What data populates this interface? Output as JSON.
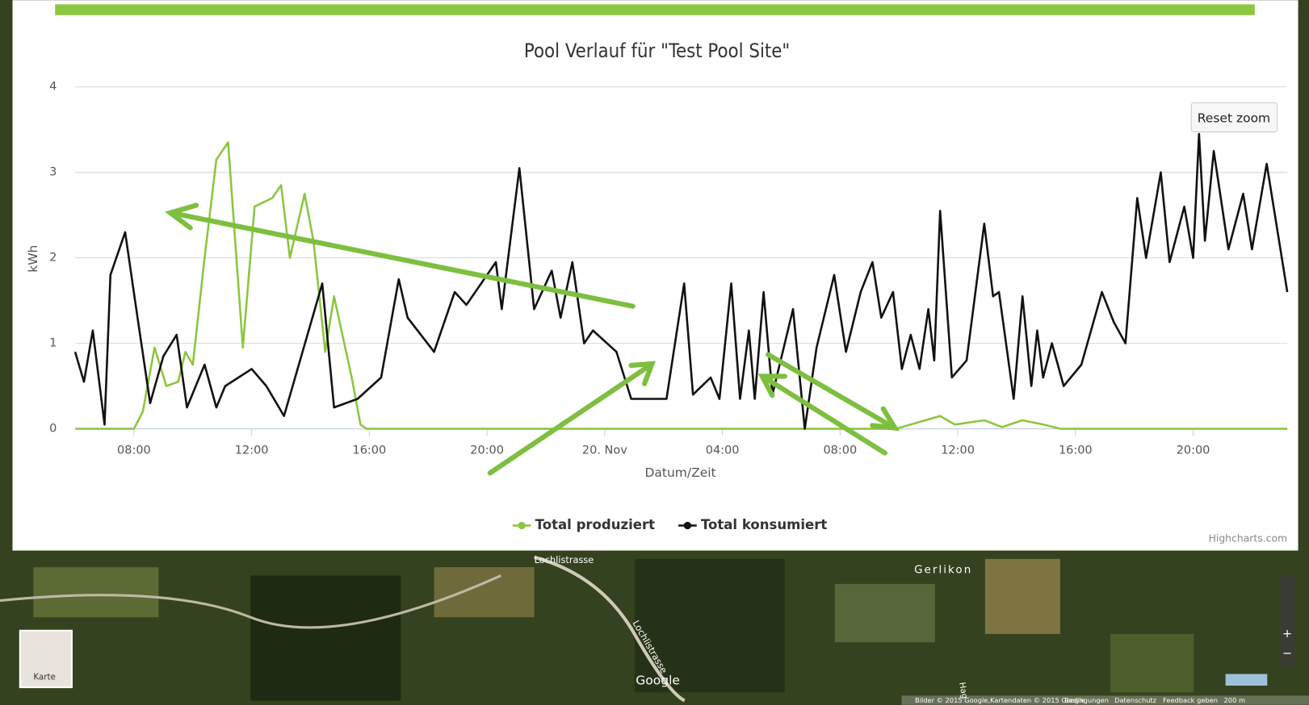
{
  "chart_data": {
    "type": "line",
    "title": "Pool Verlauf für \"Test Pool Site\"",
    "x_label": "Datum/Zeit",
    "y_label": "kWh",
    "xlim": [
      6,
      47.2
    ],
    "ylim": [
      0,
      4
    ],
    "xticks": [
      {
        "value": 8,
        "label": "08:00"
      },
      {
        "value": 12,
        "label": "12:00"
      },
      {
        "value": 16,
        "label": "16:00"
      },
      {
        "value": 20,
        "label": "20:00"
      },
      {
        "value": 24,
        "label": "20. Nov"
      },
      {
        "value": 28,
        "label": "04:00"
      },
      {
        "value": 32,
        "label": "08:00"
      },
      {
        "value": 36,
        "label": "12:00"
      },
      {
        "value": 40,
        "label": "16:00"
      },
      {
        "value": 44,
        "label": "20:00"
      }
    ],
    "yticks": [
      0,
      1,
      2,
      3,
      4
    ],
    "grid": true,
    "series": [
      {
        "name": "Total produziert",
        "color": "#8dc63f",
        "x": [
          6,
          8,
          8.3,
          8.7,
          9.1,
          9.5,
          9.75,
          10,
          10.4,
          10.8,
          11.2,
          11.7,
          12.1,
          12.7,
          13,
          13.3,
          13.8,
          14.1,
          14.5,
          14.8,
          15.4,
          15.7,
          15.9,
          33.9,
          34.9,
          35.4,
          35.9,
          36.9,
          37.5,
          38.2,
          38.9,
          39.5,
          47.2
        ],
        "values": [
          0,
          0,
          0.2,
          0.95,
          0.5,
          0.55,
          0.9,
          0.75,
          2.0,
          3.15,
          3.35,
          0.95,
          2.6,
          2.7,
          2.85,
          2.0,
          2.75,
          2.2,
          0.9,
          1.55,
          0.6,
          0.05,
          0,
          0,
          0.1,
          0.15,
          0.05,
          0.1,
          0.02,
          0.1,
          0.05,
          0,
          0
        ]
      },
      {
        "name": "Total konsumiert",
        "color": "#111111",
        "x": [
          6,
          6.3,
          6.6,
          7.0,
          7.2,
          7.7,
          8.1,
          8.55,
          9.0,
          9.45,
          9.8,
          10.4,
          10.8,
          11.1,
          12,
          12.5,
          13.1,
          14.4,
          14.8,
          15.6,
          16.4,
          17,
          17.3,
          18.2,
          18.9,
          19.3,
          20.3,
          20.5,
          21.1,
          21.6,
          22.2,
          22.5,
          22.9,
          23.3,
          23.6,
          24.4,
          24.9,
          25.6,
          26.1,
          26.7,
          27,
          27.6,
          27.9,
          28.3,
          28.6,
          28.9,
          29.1,
          29.4,
          29.7,
          30.4,
          30.8,
          31.2,
          31.8,
          32.2,
          32.7,
          33.1,
          33.4,
          33.8,
          34.1,
          34.4,
          34.7,
          35,
          35.2,
          35.4,
          35.8,
          36.3,
          36.9,
          37.2,
          37.4,
          37.9,
          38.2,
          38.5,
          38.7,
          38.9,
          39.2,
          39.6,
          40.2,
          40.9,
          41.3,
          41.7,
          42.1,
          42.4,
          42.9,
          43.2,
          43.7,
          44,
          44.2,
          44.4,
          44.7,
          45.2,
          45.7,
          46,
          46.5,
          47.2
        ],
        "values": [
          0.9,
          0.55,
          1.15,
          0.05,
          1.8,
          2.3,
          1.35,
          0.3,
          0.85,
          1.1,
          0.25,
          0.75,
          0.25,
          0.5,
          0.7,
          0.5,
          0.15,
          1.7,
          0.25,
          0.35,
          0.6,
          1.75,
          1.3,
          0.9,
          1.6,
          1.45,
          1.95,
          1.4,
          3.05,
          1.4,
          1.85,
          1.3,
          1.95,
          1.0,
          1.15,
          0.9,
          0.35,
          0.35,
          0.35,
          1.7,
          0.4,
          0.6,
          0.35,
          1.7,
          0.35,
          1.15,
          0.35,
          1.6,
          0.4,
          1.4,
          0.0,
          0.95,
          1.8,
          0.9,
          1.6,
          1.95,
          1.3,
          1.6,
          0.7,
          1.1,
          0.7,
          1.4,
          0.8,
          2.55,
          0.6,
          0.8,
          2.4,
          1.55,
          1.6,
          0.35,
          1.55,
          0.5,
          1.15,
          0.6,
          1.0,
          0.5,
          0.75,
          1.6,
          1.25,
          1.0,
          2.7,
          2.0,
          3.0,
          1.95,
          2.6,
          2.0,
          3.45,
          2.2,
          3.25,
          2.1,
          2.75,
          2.1,
          3.1,
          1.6
        ]
      }
    ],
    "legend": "bottom",
    "reset_zoom": "Reset zoom",
    "credits": "Highcharts.com"
  },
  "map": {
    "streets": [
      "Lochlistrasse",
      "Lochlistrasse",
      "Hag"
    ],
    "place": "Gerlikon",
    "thumbnail": "Karte",
    "brand": "Google",
    "footer": [
      "Bilder © 2015 Google,Kartendaten © 2015 Google",
      "Bedingungen",
      "Datenschutz",
      "Feedback geben",
      "200 m"
    ]
  }
}
